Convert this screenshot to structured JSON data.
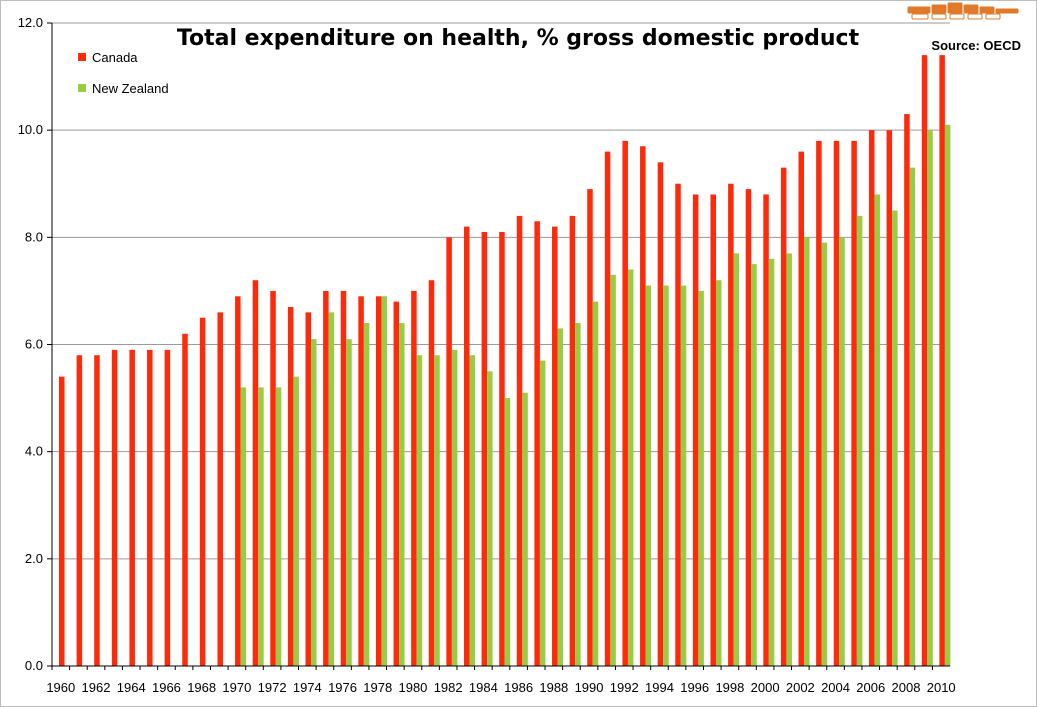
{
  "chart_data": {
    "type": "bar",
    "title": "Total expenditure on health, % gross domestic product",
    "source": "Source: OECD",
    "xlabel": "",
    "ylabel": "",
    "ylim": [
      0,
      12
    ],
    "yticks": [
      "0.0",
      "2.0",
      "4.0",
      "6.0",
      "8.0",
      "10.0",
      "12.0"
    ],
    "grid": true,
    "legend_position": "top-left",
    "categories": [
      1960,
      1961,
      1962,
      1963,
      1964,
      1965,
      1966,
      1967,
      1968,
      1969,
      1970,
      1971,
      1972,
      1973,
      1974,
      1975,
      1976,
      1977,
      1978,
      1979,
      1980,
      1981,
      1982,
      1983,
      1984,
      1985,
      1986,
      1987,
      1988,
      1989,
      1990,
      1991,
      1992,
      1993,
      1994,
      1995,
      1996,
      1997,
      1998,
      1999,
      2000,
      2001,
      2002,
      2003,
      2004,
      2005,
      2006,
      2007,
      2008,
      2009,
      2010
    ],
    "x_tick_labels": [
      "1960",
      "1962",
      "1964",
      "1966",
      "1968",
      "1970",
      "1972",
      "1974",
      "1976",
      "1978",
      "1980",
      "1982",
      "1984",
      "1986",
      "1988",
      "1990",
      "1992",
      "1994",
      "1996",
      "1998",
      "2000",
      "2002",
      "2004",
      "2006",
      "2008",
      "2010"
    ],
    "series": [
      {
        "name": "Canada",
        "color": "#ff2a0a",
        "values": [
          5.4,
          5.8,
          5.8,
          5.9,
          5.9,
          5.9,
          5.9,
          6.2,
          6.5,
          6.6,
          6.9,
          7.2,
          7.0,
          6.7,
          6.6,
          7.0,
          7.0,
          6.9,
          6.9,
          6.8,
          7.0,
          7.2,
          8.0,
          8.2,
          8.1,
          8.1,
          8.4,
          8.3,
          8.2,
          8.4,
          8.9,
          9.6,
          9.8,
          9.7,
          9.4,
          9.0,
          8.8,
          8.8,
          9.0,
          8.9,
          8.8,
          9.3,
          9.6,
          9.8,
          9.8,
          9.8,
          10.0,
          10.0,
          10.3,
          11.4,
          11.4
        ]
      },
      {
        "name": "New Zealand",
        "color": "#99cc44",
        "values": [
          null,
          null,
          null,
          null,
          null,
          null,
          null,
          null,
          null,
          null,
          5.2,
          5.2,
          5.2,
          5.4,
          6.1,
          6.6,
          6.1,
          6.4,
          6.9,
          6.4,
          5.8,
          5.8,
          5.9,
          5.8,
          5.5,
          5.0,
          5.1,
          5.7,
          6.3,
          6.4,
          6.8,
          7.3,
          7.4,
          7.1,
          7.1,
          7.1,
          7.0,
          7.2,
          7.7,
          7.5,
          7.6,
          7.7,
          8.0,
          7.9,
          8.0,
          8.4,
          8.8,
          8.5,
          9.3,
          10.0,
          10.1
        ]
      }
    ]
  },
  "logo": {
    "name": "brand-logo",
    "color": "#e07a2a"
  }
}
